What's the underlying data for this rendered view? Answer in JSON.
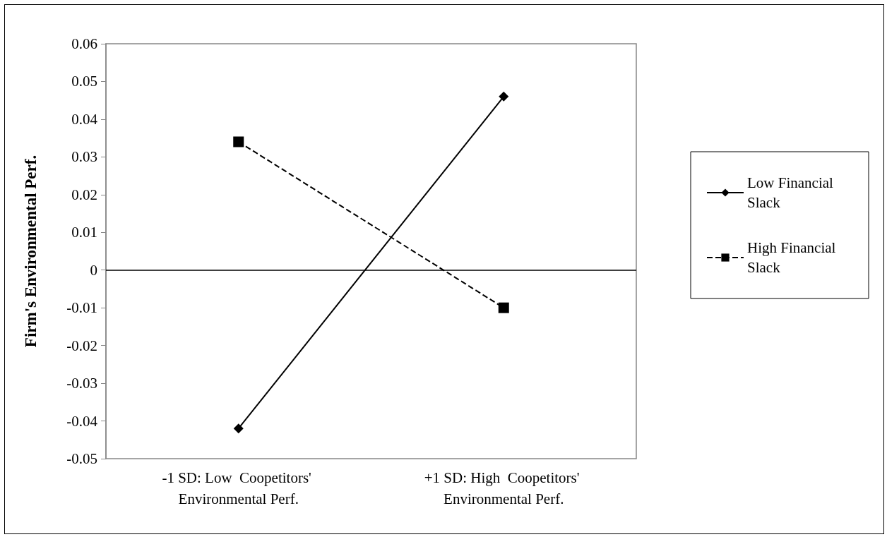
{
  "chart_data": {
    "type": "line",
    "ylabel": "Firm's Environmental Perf.",
    "categories": [
      "-1 SD: Low  Coopetitors' Environmental Perf.",
      "+1 SD: High  Coopetitors' Environmental Perf."
    ],
    "series": [
      {
        "name": "Low Financial Slack",
        "color": "#000000",
        "values": [
          -0.042,
          0.046
        ],
        "marker": "diamond",
        "line_style": "solid"
      },
      {
        "name": "High Financial Slack",
        "color": "#000000",
        "values": [
          0.034,
          -0.01
        ],
        "marker": "square",
        "line_style": "dashed"
      }
    ],
    "ylim": [
      -0.05,
      0.06
    ],
    "yticks": [
      -0.05,
      -0.04,
      -0.03,
      -0.02,
      -0.01,
      0,
      0.01,
      0.02,
      0.03,
      0.04,
      0.05,
      0.06
    ],
    "ref_lines": [
      {
        "axis": "y",
        "value": 0,
        "color": "#000000",
        "line_style": "solid"
      }
    ],
    "grid": false,
    "legend": "right"
  }
}
